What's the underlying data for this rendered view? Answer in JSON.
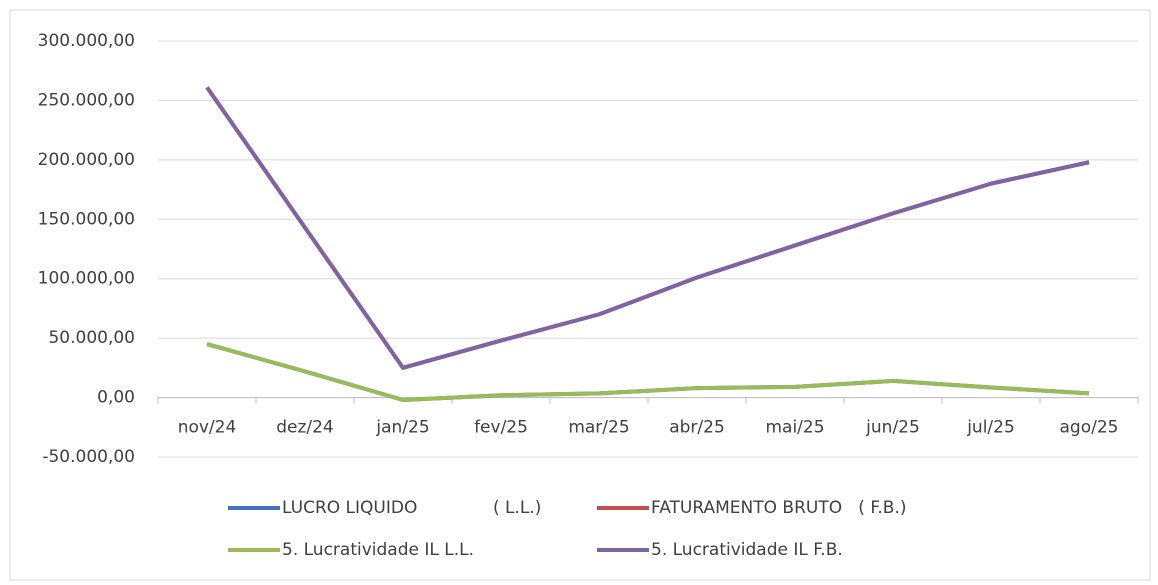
{
  "chart_data": {
    "type": "line",
    "categories": [
      "nov/24",
      "dez/24",
      "jan/25",
      "fev/25",
      "mar/25",
      "abr/25",
      "mai/25",
      "jun/25",
      "jul/25",
      "ago/25"
    ],
    "series": [
      {
        "name": "LUCRO LIQUIDO              ( L.L.)",
        "color": "#4472c4",
        "values": [
          45000,
          22000,
          -2000,
          2000,
          3500,
          8000,
          9000,
          14000,
          8500,
          3500
        ]
      },
      {
        "name": "FATURAMENTO BRUTO   ( F.B.)",
        "color": "#c0504d",
        "values": [
          261000,
          143000,
          25000,
          48000,
          70000,
          101000,
          128000,
          155000,
          180000,
          198000
        ]
      },
      {
        "name": "5. Lucratividade IL L.L.",
        "color": "#9bbb59",
        "values": [
          45000,
          22000,
          -2000,
          2000,
          3500,
          8000,
          9000,
          14000,
          8500,
          3500
        ]
      },
      {
        "name": "5. Lucratividade IL F.B.",
        "color": "#8064a2",
        "values": [
          261000,
          143000,
          25000,
          48000,
          70000,
          101000,
          128000,
          155000,
          180000,
          198000
        ]
      }
    ],
    "ylim": [
      -50000,
      300000
    ],
    "yticks": [
      {
        "value": -50000,
        "label": "-50.000,00"
      },
      {
        "value": 0,
        "label": "0,00"
      },
      {
        "value": 50000,
        "label": "50.000,00"
      },
      {
        "value": 100000,
        "label": "100.000,00"
      },
      {
        "value": 150000,
        "label": "150.000,00"
      },
      {
        "value": 200000,
        "label": "200.000,00"
      },
      {
        "value": 250000,
        "label": "250.000,00"
      },
      {
        "value": 300000,
        "label": "300.000,00"
      }
    ],
    "grid": true,
    "legend": "bottom"
  }
}
